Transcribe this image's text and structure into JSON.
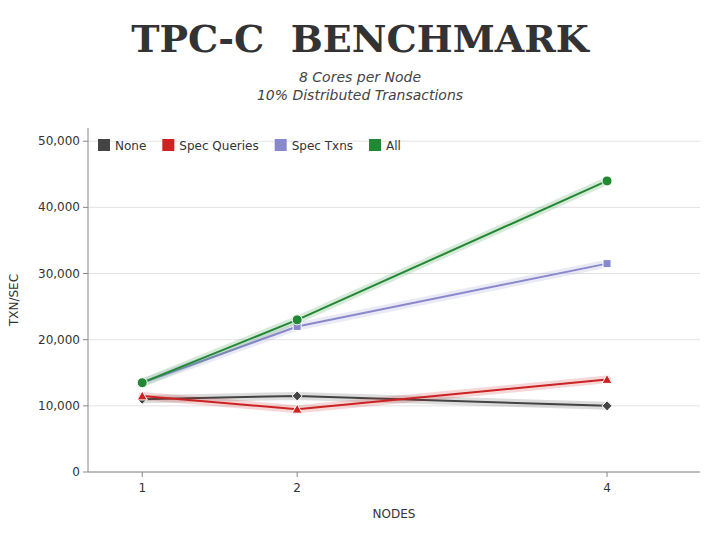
{
  "chart_data": {
    "type": "line",
    "title": "TPC-C  BENCHMARK",
    "subtitle": "8 Cores per Node\n10% Distributed Transactions",
    "x_label": "NODES",
    "y_label": "TXN/SEC",
    "x": [
      1,
      2,
      4
    ],
    "series": [
      {
        "name": "None",
        "color": "#444444",
        "marker": "diamond",
        "values": [
          11000,
          11500,
          10000
        ]
      },
      {
        "name": "Spec Queries",
        "color": "#cc2222",
        "marker": "triangle",
        "values": [
          11500,
          9500,
          14000
        ]
      },
      {
        "name": "Spec Txns",
        "color": "#8888cc",
        "marker": "square",
        "values": [
          13500,
          22000,
          31500
        ]
      },
      {
        "name": "All",
        "color": "#228833",
        "marker": "circle",
        "values": [
          13500,
          23000,
          44000
        ]
      }
    ],
    "xlim": [
      0.65,
      4.6
    ],
    "xticks": [
      1,
      2,
      4
    ],
    "ylim": [
      0,
      52000
    ],
    "yticks": [
      0,
      {
        "value": 10000,
        "label": "10,000"
      },
      {
        "value": 20000,
        "label": "20,000"
      },
      {
        "value": 30000,
        "label": "30,000"
      },
      {
        "value": 40000,
        "label": "40,000"
      },
      {
        "value": 50000,
        "label": "50,000"
      }
    ],
    "grid": true,
    "legend": "upper left"
  }
}
